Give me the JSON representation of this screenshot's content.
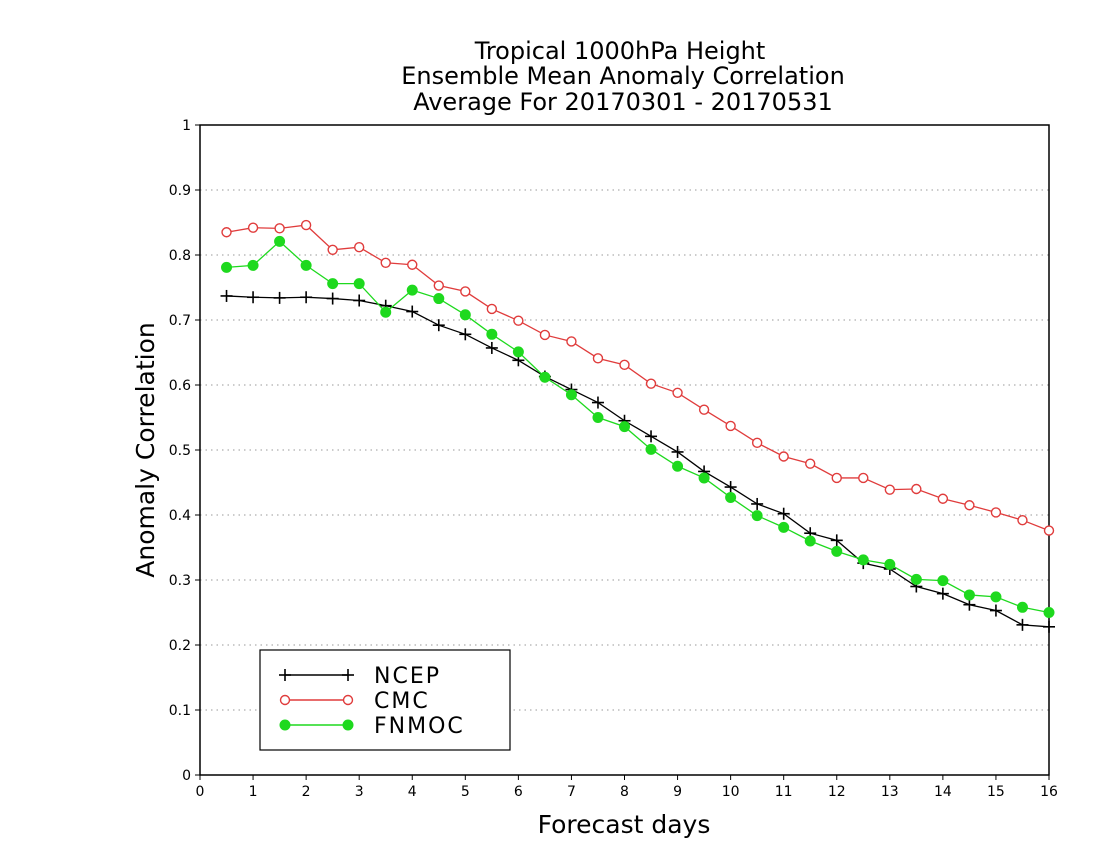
{
  "chart_data": {
    "type": "line",
    "title": [
      "Tropical 1000hPa Height",
      "Ensemble Mean Anomaly Correlation",
      "Average For 20170301 - 20170531"
    ],
    "xlabel": "Forecast days",
    "ylabel": "Anomaly Correlation",
    "xlim": [
      0,
      16
    ],
    "ylim": [
      0,
      1
    ],
    "x_ticks": [
      "0",
      "1",
      "2",
      "3",
      "4",
      "5",
      "6",
      "7",
      "8",
      "9",
      "10",
      "11",
      "12",
      "13",
      "14",
      "15",
      "16"
    ],
    "y_ticks": [
      "0",
      "0.1",
      "0.2",
      "0.3",
      "0.4",
      "0.5",
      "0.6",
      "0.7",
      "0.8",
      "0.9",
      "1"
    ],
    "grid": "horizontal dotted",
    "legend_position": "bottom-left",
    "x": [
      0.5,
      1,
      1.5,
      2,
      2.5,
      3,
      3.5,
      4,
      4.5,
      5,
      5.5,
      6,
      6.5,
      7,
      7.5,
      8,
      8.5,
      9,
      9.5,
      10,
      10.5,
      11,
      11.5,
      12,
      12.5,
      13,
      13.5,
      14,
      14.5,
      15,
      15.5,
      16
    ],
    "series": [
      {
        "name": "NCEP",
        "color": "#000000",
        "marker": "plus",
        "values": [
          0.737,
          0.735,
          0.734,
          0.735,
          0.733,
          0.73,
          0.722,
          0.713,
          0.692,
          0.678,
          0.657,
          0.638,
          0.613,
          0.593,
          0.573,
          0.545,
          0.521,
          0.497,
          0.467,
          0.443,
          0.417,
          0.402,
          0.372,
          0.361,
          0.326,
          0.317,
          0.29,
          0.279,
          0.262,
          0.253,
          0.231,
          0.228
        ]
      },
      {
        "name": "CMC",
        "color": "#e03c3c",
        "marker": "open-circle",
        "values": [
          0.835,
          0.842,
          0.841,
          0.846,
          0.808,
          0.812,
          0.788,
          0.785,
          0.753,
          0.744,
          0.717,
          0.699,
          0.677,
          0.667,
          0.641,
          0.631,
          0.602,
          0.588,
          0.562,
          0.537,
          0.511,
          0.49,
          0.479,
          0.457,
          0.457,
          0.439,
          0.44,
          0.425,
          0.415,
          0.404,
          0.392,
          0.376
        ]
      },
      {
        "name": "FNMOC",
        "color": "#1ed91e",
        "marker": "filled-circle",
        "values": [
          0.781,
          0.784,
          0.821,
          0.784,
          0.756,
          0.756,
          0.712,
          0.746,
          0.733,
          0.708,
          0.678,
          0.651,
          0.612,
          0.585,
          0.55,
          0.536,
          0.501,
          0.475,
          0.457,
          0.427,
          0.399,
          0.381,
          0.36,
          0.344,
          0.331,
          0.324,
          0.301,
          0.299,
          0.277,
          0.274,
          0.258,
          0.25
        ]
      }
    ]
  }
}
